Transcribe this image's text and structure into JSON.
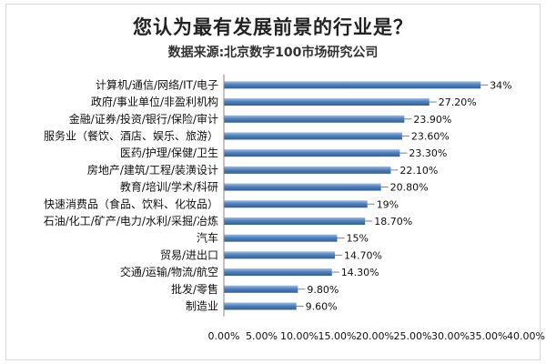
{
  "chart_data": {
    "type": "bar",
    "orientation": "horizontal",
    "title": "您认为最有发展前景的行业是？",
    "subtitle": "数据来源:北京数字100市场研究公司",
    "categories": [
      "计算机/通信/网络/IT/电子",
      "政府/事业单位/非盈利机构",
      "金融/证券/投资/银行/保险/审计",
      "服务业（餐饮、酒店、娱乐、旅游）",
      "医药/护理/保健/卫生",
      "房地产/建筑/工程/装潢设计",
      "教育/培训/学术/科研",
      "快速消费品（食品、饮料、化妆品）",
      "石油/化工/矿产/电力/水利/采掘/冶炼",
      "汽车",
      "贸易/进出口",
      "交通/运输/物流/航空",
      "批发/零售",
      "制造业"
    ],
    "values": [
      34,
      27.2,
      23.9,
      23.6,
      23.3,
      22.1,
      20.8,
      19,
      18.7,
      15,
      14.7,
      14.3,
      9.8,
      9.6
    ],
    "value_labels": [
      "34%",
      "27.20%",
      "23.90%",
      "23.60%",
      "23.30%",
      "22.10%",
      "20.80%",
      "19%",
      "18.70%",
      "15%",
      "14.70%",
      "14.30%",
      "9.80%",
      "9.60%"
    ],
    "xlim": [
      0,
      40
    ],
    "x_ticks": [
      "0.00%",
      "5.00%",
      "10.00%",
      "15.00%",
      "20.00%",
      "25.00%",
      "30.00%",
      "35.00%",
      "40.00%"
    ],
    "grid": false,
    "legend": "none",
    "colors": {
      "bar_dark": "#2f5f95",
      "bar_mid": "#4f81bd",
      "bar_light": "#9fbde4",
      "axis": "#8a8a8a",
      "leader": "#7f7f7f"
    }
  }
}
